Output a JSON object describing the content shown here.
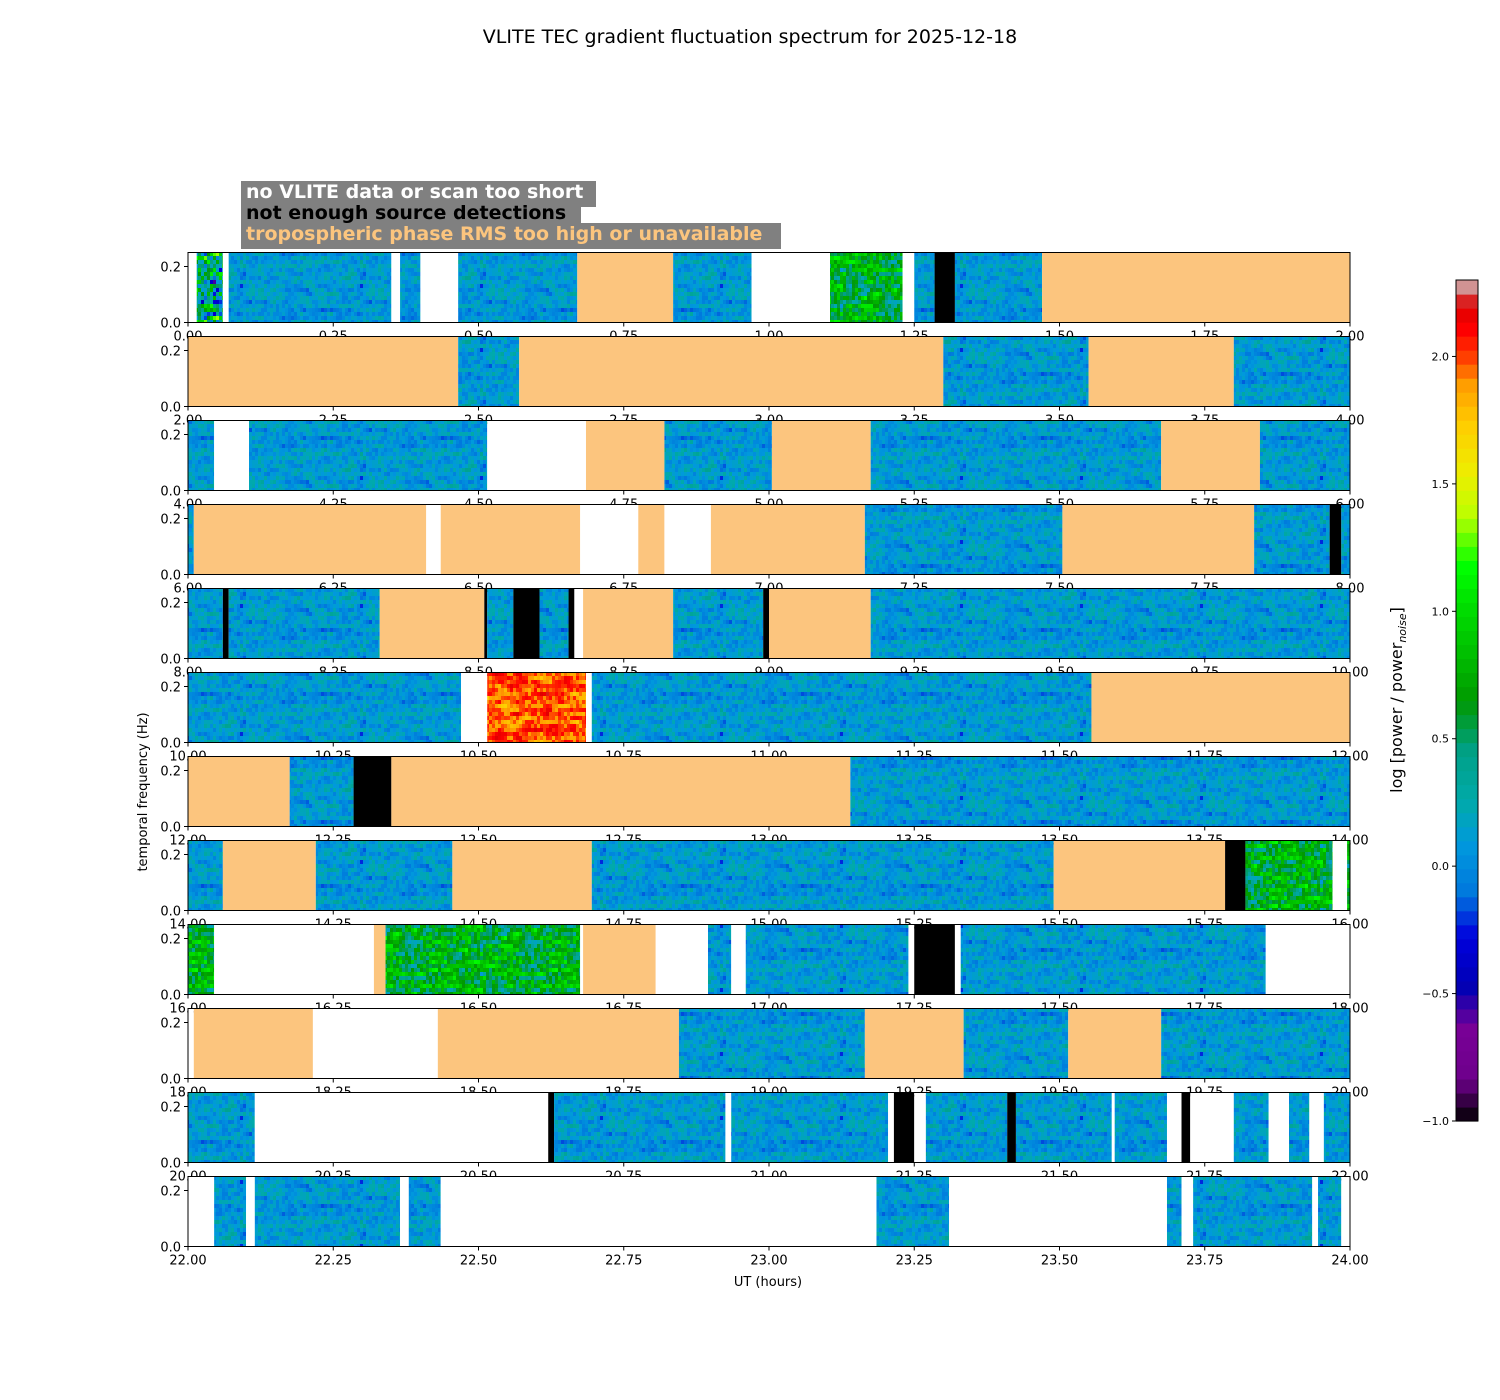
{
  "chart_data": {
    "type": "heatmap",
    "title": "VLITE TEC gradient fluctuation spectrum for 2025-12-18",
    "xlabel": "UT (hours)",
    "ylabel": "temporal frequency (Hz)",
    "colorbar_label_main": "log [power / power",
    "colorbar_label_sub": "noise",
    "colorbar_label_end": "]",
    "colorbar_range": [
      -1.0,
      2.3
    ],
    "colorbar_ticks": [
      -1.0,
      -0.5,
      0.0,
      0.5,
      1.0,
      1.5,
      2.0
    ],
    "colorbar_tick_labels": [
      "−1.0",
      "−0.5",
      "0.0",
      "0.5",
      "1.0",
      "1.5",
      "2.0"
    ],
    "ylim": [
      0.0,
      0.25
    ],
    "yticks": [
      0.0,
      0.2
    ],
    "ytick_labels": [
      "0.0",
      "0.2"
    ],
    "legend": [
      {
        "text": "no VLITE data or scan too short",
        "color": "#ffffff"
      },
      {
        "text": "not enough source detections",
        "color": "#000000"
      },
      {
        "text": "tropospheric phase RMS too high or unavailable",
        "color": "#fcc57e"
      }
    ],
    "legend_placement": "top-left",
    "colors": {
      "no_data": "#ffffff",
      "not_enough_detections": "#000000",
      "tropo_rms": "#fcc57e",
      "legend_bg": "#808080"
    },
    "panels": [
      {
        "xlim": [
          0,
          2
        ],
        "xtick_labels": [
          "0.00",
          "0.25",
          "0.50",
          "0.75",
          "1.00",
          "1.25",
          "1.50",
          "1.75",
          "2.00"
        ],
        "segments": [
          {
            "start": 0.0,
            "end": 0.015,
            "kind": "w"
          },
          {
            "start": 0.015,
            "end": 0.06,
            "kind": "a"
          },
          {
            "start": 0.06,
            "end": 0.07,
            "kind": "w"
          },
          {
            "start": 0.07,
            "end": 0.35,
            "kind": "d"
          },
          {
            "start": 0.35,
            "end": 0.365,
            "kind": "w"
          },
          {
            "start": 0.365,
            "end": 0.4,
            "kind": "d"
          },
          {
            "start": 0.4,
            "end": 0.465,
            "kind": "w"
          },
          {
            "start": 0.465,
            "end": 0.67,
            "kind": "d"
          },
          {
            "start": 0.67,
            "end": 0.835,
            "kind": "o"
          },
          {
            "start": 0.835,
            "end": 0.97,
            "kind": "d"
          },
          {
            "start": 0.97,
            "end": 1.105,
            "kind": "w"
          },
          {
            "start": 1.105,
            "end": 1.23,
            "kind": "g"
          },
          {
            "start": 1.23,
            "end": 1.25,
            "kind": "w"
          },
          {
            "start": 1.25,
            "end": 1.285,
            "kind": "d"
          },
          {
            "start": 1.285,
            "end": 1.32,
            "kind": "b"
          },
          {
            "start": 1.32,
            "end": 1.47,
            "kind": "d"
          },
          {
            "start": 1.47,
            "end": 2.0,
            "kind": "o"
          }
        ]
      },
      {
        "xlim": [
          2,
          4
        ],
        "xtick_labels": [
          "2.00",
          "2.25",
          "2.50",
          "2.75",
          "3.00",
          "3.25",
          "3.50",
          "3.75",
          "4.00"
        ],
        "segments": [
          {
            "start": 2.0,
            "end": 2.465,
            "kind": "o"
          },
          {
            "start": 2.465,
            "end": 2.57,
            "kind": "d"
          },
          {
            "start": 2.57,
            "end": 3.3,
            "kind": "o"
          },
          {
            "start": 3.3,
            "end": 3.55,
            "kind": "d"
          },
          {
            "start": 3.55,
            "end": 3.8,
            "kind": "o"
          },
          {
            "start": 3.8,
            "end": 4.0,
            "kind": "d"
          }
        ]
      },
      {
        "xlim": [
          4,
          6
        ],
        "xtick_labels": [
          "4.00",
          "4.25",
          "4.50",
          "4.75",
          "5.00",
          "5.25",
          "5.50",
          "5.75",
          "6.00"
        ],
        "segments": [
          {
            "start": 4.0,
            "end": 4.045,
            "kind": "d"
          },
          {
            "start": 4.045,
            "end": 4.105,
            "kind": "w"
          },
          {
            "start": 4.105,
            "end": 4.515,
            "kind": "d"
          },
          {
            "start": 4.515,
            "end": 4.685,
            "kind": "w"
          },
          {
            "start": 4.685,
            "end": 4.82,
            "kind": "o"
          },
          {
            "start": 4.82,
            "end": 5.005,
            "kind": "d"
          },
          {
            "start": 5.005,
            "end": 5.175,
            "kind": "o"
          },
          {
            "start": 5.175,
            "end": 5.675,
            "kind": "d"
          },
          {
            "start": 5.675,
            "end": 5.845,
            "kind": "o"
          },
          {
            "start": 5.845,
            "end": 6.0,
            "kind": "d"
          }
        ]
      },
      {
        "xlim": [
          6,
          8
        ],
        "xtick_labels": [
          "6.00",
          "6.25",
          "6.50",
          "6.75",
          "7.00",
          "7.25",
          "7.50",
          "7.75",
          "8.00"
        ],
        "segments": [
          {
            "start": 6.0,
            "end": 6.01,
            "kind": "d"
          },
          {
            "start": 6.01,
            "end": 6.41,
            "kind": "o"
          },
          {
            "start": 6.41,
            "end": 6.435,
            "kind": "w"
          },
          {
            "start": 6.435,
            "end": 6.675,
            "kind": "o"
          },
          {
            "start": 6.675,
            "end": 6.775,
            "kind": "w"
          },
          {
            "start": 6.775,
            "end": 6.82,
            "kind": "o"
          },
          {
            "start": 6.82,
            "end": 6.9,
            "kind": "w"
          },
          {
            "start": 6.9,
            "end": 7.165,
            "kind": "o"
          },
          {
            "start": 7.165,
            "end": 7.505,
            "kind": "d"
          },
          {
            "start": 7.505,
            "end": 7.835,
            "kind": "o"
          },
          {
            "start": 7.835,
            "end": 7.965,
            "kind": "d"
          },
          {
            "start": 7.965,
            "end": 7.985,
            "kind": "b"
          },
          {
            "start": 7.985,
            "end": 8.0,
            "kind": "d"
          }
        ]
      },
      {
        "xlim": [
          8,
          10
        ],
        "xtick_labels": [
          "8.00",
          "8.25",
          "8.50",
          "8.75",
          "9.00",
          "9.25",
          "9.50",
          "9.75",
          "10.00"
        ],
        "segments": [
          {
            "start": 8.0,
            "end": 8.06,
            "kind": "d"
          },
          {
            "start": 8.06,
            "end": 8.07,
            "kind": "b"
          },
          {
            "start": 8.07,
            "end": 8.33,
            "kind": "d"
          },
          {
            "start": 8.33,
            "end": 8.51,
            "kind": "o"
          },
          {
            "start": 8.51,
            "end": 8.515,
            "kind": "b"
          },
          {
            "start": 8.515,
            "end": 8.56,
            "kind": "d"
          },
          {
            "start": 8.56,
            "end": 8.605,
            "kind": "b"
          },
          {
            "start": 8.605,
            "end": 8.655,
            "kind": "d"
          },
          {
            "start": 8.655,
            "end": 8.665,
            "kind": "b"
          },
          {
            "start": 8.665,
            "end": 8.68,
            "kind": "w"
          },
          {
            "start": 8.68,
            "end": 8.835,
            "kind": "o"
          },
          {
            "start": 8.835,
            "end": 8.99,
            "kind": "d"
          },
          {
            "start": 8.99,
            "end": 9.0,
            "kind": "b"
          },
          {
            "start": 9.0,
            "end": 9.175,
            "kind": "o"
          },
          {
            "start": 9.175,
            "end": 10.0,
            "kind": "d"
          }
        ]
      },
      {
        "xlim": [
          10,
          12
        ],
        "xtick_labels": [
          "10.00",
          "10.25",
          "10.50",
          "10.75",
          "11.00",
          "11.25",
          "11.50",
          "11.75",
          "12.00"
        ],
        "segments": [
          {
            "start": 10.0,
            "end": 10.47,
            "kind": "d"
          },
          {
            "start": 10.47,
            "end": 10.515,
            "kind": "w"
          },
          {
            "start": 10.515,
            "end": 10.685,
            "kind": "r"
          },
          {
            "start": 10.685,
            "end": 10.695,
            "kind": "w"
          },
          {
            "start": 10.695,
            "end": 11.555,
            "kind": "d"
          },
          {
            "start": 11.555,
            "end": 12.0,
            "kind": "o"
          }
        ]
      },
      {
        "xlim": [
          12,
          14
        ],
        "xtick_labels": [
          "12.00",
          "12.25",
          "12.50",
          "12.75",
          "13.00",
          "13.25",
          "13.50",
          "13.75",
          "14.00"
        ],
        "segments": [
          {
            "start": 12.0,
            "end": 12.175,
            "kind": "o"
          },
          {
            "start": 12.175,
            "end": 12.285,
            "kind": "d"
          },
          {
            "start": 12.285,
            "end": 12.35,
            "kind": "b"
          },
          {
            "start": 12.35,
            "end": 13.14,
            "kind": "o"
          },
          {
            "start": 13.14,
            "end": 14.0,
            "kind": "d"
          }
        ]
      },
      {
        "xlim": [
          14,
          16
        ],
        "xtick_labels": [
          "14.00",
          "14.25",
          "14.50",
          "14.75",
          "15.00",
          "15.25",
          "15.50",
          "15.75",
          "16.00"
        ],
        "segments": [
          {
            "start": 14.0,
            "end": 14.06,
            "kind": "d"
          },
          {
            "start": 14.06,
            "end": 14.22,
            "kind": "o"
          },
          {
            "start": 14.22,
            "end": 14.455,
            "kind": "d"
          },
          {
            "start": 14.455,
            "end": 14.695,
            "kind": "o"
          },
          {
            "start": 14.695,
            "end": 15.49,
            "kind": "d"
          },
          {
            "start": 15.49,
            "end": 15.785,
            "kind": "o"
          },
          {
            "start": 15.785,
            "end": 15.82,
            "kind": "b"
          },
          {
            "start": 15.82,
            "end": 15.97,
            "kind": "g"
          },
          {
            "start": 15.97,
            "end": 15.995,
            "kind": "w"
          },
          {
            "start": 15.995,
            "end": 16.0,
            "kind": "g"
          }
        ]
      },
      {
        "xlim": [
          16,
          18
        ],
        "xtick_labels": [
          "16.00",
          "16.25",
          "16.50",
          "16.75",
          "17.00",
          "17.25",
          "17.50",
          "17.75",
          "18.00"
        ],
        "segments": [
          {
            "start": 16.0,
            "end": 16.045,
            "kind": "g"
          },
          {
            "start": 16.045,
            "end": 16.32,
            "kind": "w"
          },
          {
            "start": 16.32,
            "end": 16.34,
            "kind": "o"
          },
          {
            "start": 16.34,
            "end": 16.675,
            "kind": "g"
          },
          {
            "start": 16.675,
            "end": 16.68,
            "kind": "w"
          },
          {
            "start": 16.68,
            "end": 16.805,
            "kind": "o"
          },
          {
            "start": 16.805,
            "end": 16.895,
            "kind": "w"
          },
          {
            "start": 16.895,
            "end": 16.935,
            "kind": "d"
          },
          {
            "start": 16.935,
            "end": 16.96,
            "kind": "w"
          },
          {
            "start": 16.96,
            "end": 17.24,
            "kind": "d"
          },
          {
            "start": 17.24,
            "end": 17.25,
            "kind": "w"
          },
          {
            "start": 17.25,
            "end": 17.32,
            "kind": "b"
          },
          {
            "start": 17.32,
            "end": 17.33,
            "kind": "w"
          },
          {
            "start": 17.33,
            "end": 17.855,
            "kind": "d"
          },
          {
            "start": 17.855,
            "end": 18.0,
            "kind": "w"
          }
        ]
      },
      {
        "xlim": [
          18,
          20
        ],
        "xtick_labels": [
          "18.00",
          "18.25",
          "18.50",
          "18.75",
          "19.00",
          "19.25",
          "19.50",
          "19.75",
          "20.00"
        ],
        "segments": [
          {
            "start": 18.0,
            "end": 18.01,
            "kind": "w"
          },
          {
            "start": 18.01,
            "end": 18.215,
            "kind": "o"
          },
          {
            "start": 18.215,
            "end": 18.43,
            "kind": "w"
          },
          {
            "start": 18.43,
            "end": 18.845,
            "kind": "o"
          },
          {
            "start": 18.845,
            "end": 19.165,
            "kind": "d"
          },
          {
            "start": 19.165,
            "end": 19.335,
            "kind": "o"
          },
          {
            "start": 19.335,
            "end": 19.515,
            "kind": "d"
          },
          {
            "start": 19.515,
            "end": 19.675,
            "kind": "o"
          },
          {
            "start": 19.675,
            "end": 20.0,
            "kind": "d"
          }
        ]
      },
      {
        "xlim": [
          20,
          22
        ],
        "xtick_labels": [
          "20.00",
          "20.25",
          "20.50",
          "20.75",
          "21.00",
          "21.25",
          "21.50",
          "21.75",
          "22.00"
        ],
        "segments": [
          {
            "start": 20.0,
            "end": 20.115,
            "kind": "d"
          },
          {
            "start": 20.115,
            "end": 20.62,
            "kind": "w"
          },
          {
            "start": 20.62,
            "end": 20.63,
            "kind": "b"
          },
          {
            "start": 20.63,
            "end": 20.925,
            "kind": "d"
          },
          {
            "start": 20.925,
            "end": 20.935,
            "kind": "w"
          },
          {
            "start": 20.935,
            "end": 21.205,
            "kind": "d"
          },
          {
            "start": 21.205,
            "end": 21.215,
            "kind": "w"
          },
          {
            "start": 21.215,
            "end": 21.25,
            "kind": "b"
          },
          {
            "start": 21.25,
            "end": 21.27,
            "kind": "w"
          },
          {
            "start": 21.27,
            "end": 21.41,
            "kind": "d"
          },
          {
            "start": 21.41,
            "end": 21.425,
            "kind": "b"
          },
          {
            "start": 21.425,
            "end": 21.59,
            "kind": "d"
          },
          {
            "start": 21.59,
            "end": 21.595,
            "kind": "w"
          },
          {
            "start": 21.595,
            "end": 21.685,
            "kind": "d"
          },
          {
            "start": 21.685,
            "end": 21.71,
            "kind": "w"
          },
          {
            "start": 21.71,
            "end": 21.725,
            "kind": "b"
          },
          {
            "start": 21.725,
            "end": 21.8,
            "kind": "w"
          },
          {
            "start": 21.8,
            "end": 21.86,
            "kind": "d"
          },
          {
            "start": 21.86,
            "end": 21.895,
            "kind": "w"
          },
          {
            "start": 21.895,
            "end": 21.93,
            "kind": "d"
          },
          {
            "start": 21.93,
            "end": 21.955,
            "kind": "w"
          },
          {
            "start": 21.955,
            "end": 22.0,
            "kind": "d"
          }
        ]
      },
      {
        "xlim": [
          22,
          24
        ],
        "xtick_labels": [
          "22.00",
          "22.25",
          "22.50",
          "22.75",
          "23.00",
          "23.25",
          "23.50",
          "23.75",
          "24.00"
        ],
        "segments": [
          {
            "start": 22.0,
            "end": 22.045,
            "kind": "w"
          },
          {
            "start": 22.045,
            "end": 22.1,
            "kind": "d"
          },
          {
            "start": 22.1,
            "end": 22.115,
            "kind": "w"
          },
          {
            "start": 22.115,
            "end": 22.365,
            "kind": "d"
          },
          {
            "start": 22.365,
            "end": 22.38,
            "kind": "w"
          },
          {
            "start": 22.38,
            "end": 22.435,
            "kind": "d"
          },
          {
            "start": 22.435,
            "end": 23.185,
            "kind": "w"
          },
          {
            "start": 23.185,
            "end": 23.31,
            "kind": "d"
          },
          {
            "start": 23.31,
            "end": 23.685,
            "kind": "w"
          },
          {
            "start": 23.685,
            "end": 23.71,
            "kind": "d"
          },
          {
            "start": 23.71,
            "end": 23.73,
            "kind": "w"
          },
          {
            "start": 23.73,
            "end": 23.935,
            "kind": "d"
          },
          {
            "start": 23.935,
            "end": 23.945,
            "kind": "w"
          },
          {
            "start": 23.945,
            "end": 23.985,
            "kind": "d"
          },
          {
            "start": 23.985,
            "end": 24.0,
            "kind": "w"
          }
        ]
      }
    ]
  }
}
